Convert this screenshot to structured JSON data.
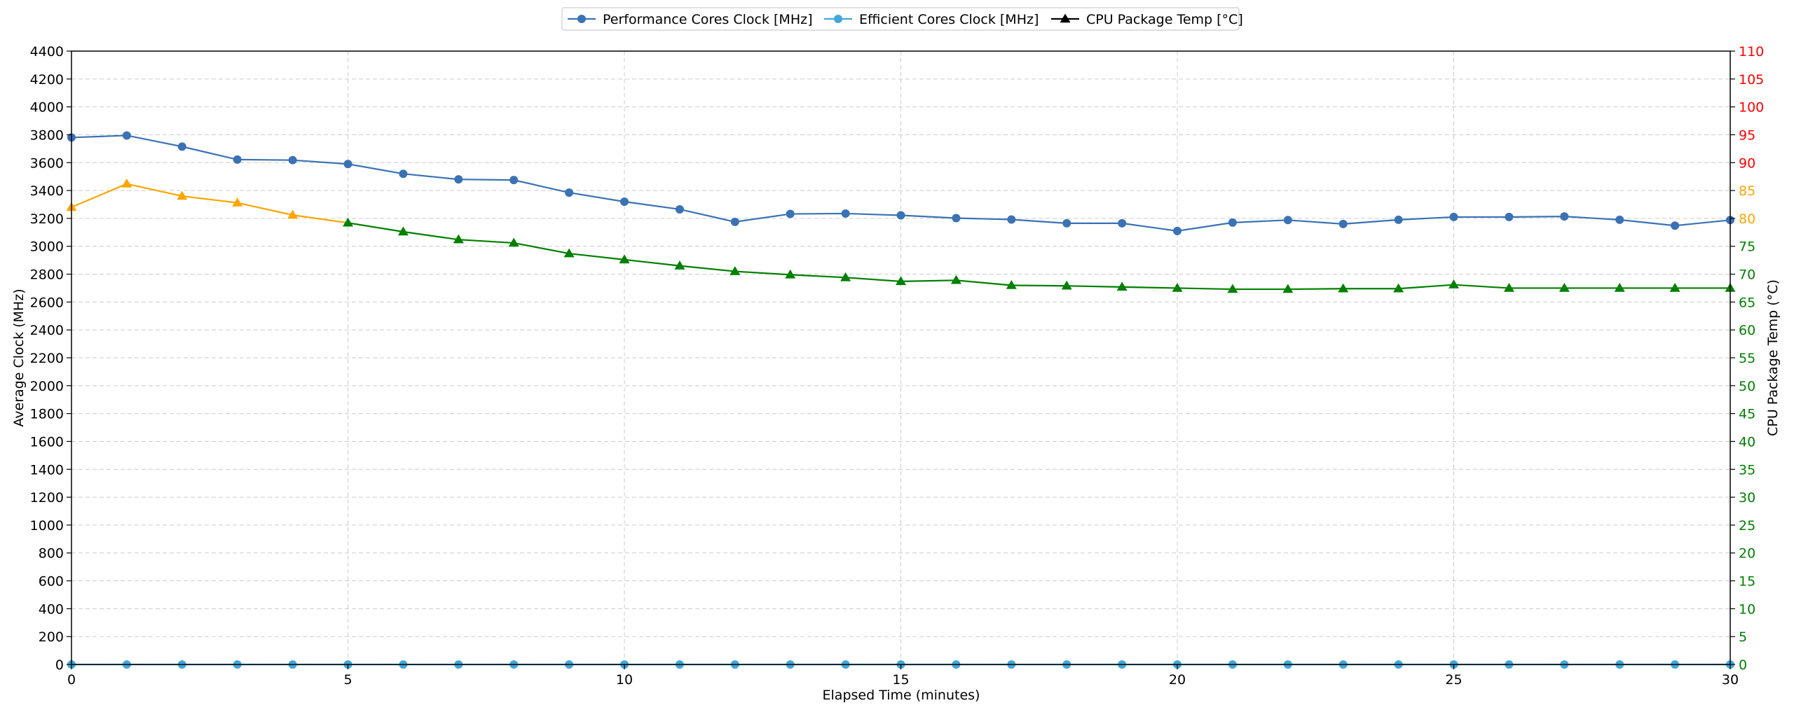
{
  "chart_data": {
    "type": "line",
    "title": "",
    "xlabel": "Elapsed Time (minutes)",
    "ylabel": "Average Clock (MHz)",
    "y2label": "CPU Package Temp (°C)",
    "xlim": [
      0,
      30
    ],
    "ylim": [
      0,
      4400
    ],
    "y2lim": [
      0,
      110
    ],
    "grid": true,
    "legend_position": "top-center",
    "x_ticks": [
      0,
      5,
      10,
      15,
      20,
      25,
      30
    ],
    "y_ticks": [
      0,
      200,
      400,
      600,
      800,
      1000,
      1200,
      1400,
      1600,
      1800,
      2000,
      2200,
      2400,
      2600,
      2800,
      3000,
      3200,
      3400,
      3600,
      3800,
      4000,
      4200,
      4400
    ],
    "y2_ticks": [
      0,
      5,
      10,
      15,
      20,
      25,
      30,
      35,
      40,
      45,
      50,
      55,
      60,
      65,
      70,
      75,
      80,
      85,
      90,
      95,
      100,
      105,
      110
    ],
    "x": [
      0,
      1,
      2,
      3,
      4,
      5,
      6,
      7,
      8,
      9,
      10,
      11,
      12,
      13,
      14,
      15,
      16,
      17,
      18,
      19,
      20,
      21,
      22,
      23,
      24,
      25,
      26,
      27,
      28,
      29,
      30
    ],
    "series": [
      {
        "name": "Performance Cores Clock [MHz]",
        "axis": "left",
        "marker": "circle",
        "color": "#3a72b4",
        "values": [
          3780,
          3795,
          3715,
          3622,
          3618,
          3590,
          3520,
          3480,
          3475,
          3385,
          3320,
          3265,
          3175,
          3232,
          3235,
          3222,
          3202,
          3192,
          3165,
          3165,
          3110,
          3170,
          3188,
          3160,
          3190,
          3210,
          3210,
          3214,
          3190,
          3148,
          3188
        ]
      },
      {
        "name": "Efficient Cores Clock [MHz]",
        "axis": "left",
        "marker": "circle",
        "color": "#41a7d9",
        "values": [
          0,
          0,
          0,
          0,
          0,
          0,
          0,
          0,
          0,
          0,
          0,
          0,
          0,
          0,
          0,
          0,
          0,
          0,
          0,
          0,
          0,
          0,
          0,
          0,
          0,
          0,
          0,
          0,
          0,
          0,
          0
        ]
      },
      {
        "name": "CPU Package Temp [°C]",
        "axis": "right",
        "marker": "triangle",
        "color": "#000000",
        "values": [
          82,
          86.2,
          84,
          82.8,
          80.6,
          79.2,
          77.6,
          76.2,
          75.6,
          73.7,
          72.6,
          71.5,
          70.5,
          69.9,
          69.4,
          68.7,
          68.9,
          68,
          67.9,
          67.7,
          67.5,
          67.3,
          67.3,
          67.4,
          67.4,
          68.1,
          67.5,
          67.5,
          67.5,
          67.5,
          67.5
        ]
      }
    ],
    "temp_color_thresholds": [
      {
        "min": 0,
        "max": 80,
        "color": "#008000"
      },
      {
        "min": 80,
        "max": 90,
        "color": "#ffa500"
      },
      {
        "min": 90,
        "max": 110,
        "color": "#ff0000"
      }
    ]
  }
}
